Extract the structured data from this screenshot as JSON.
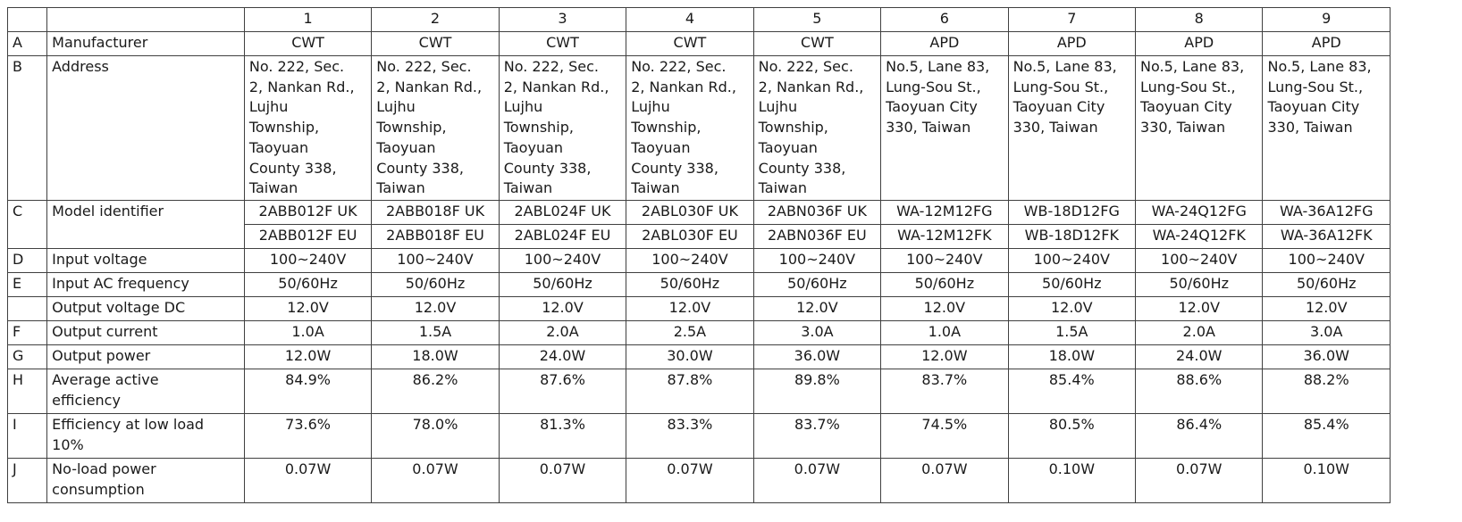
{
  "table": {
    "column_headers": [
      "1",
      "2",
      "3",
      "4",
      "5",
      "6",
      "7",
      "8",
      "9"
    ],
    "rows": [
      {
        "letter": "A",
        "label": "Manufacturer",
        "values": [
          "CWT",
          "CWT",
          "CWT",
          "CWT",
          "CWT",
          "APD",
          "APD",
          "APD",
          "APD"
        ]
      },
      {
        "letter": "B",
        "label": "Address",
        "values": [
          "No. 222, Sec.\n2, Nankan Rd.,\nLujhu\nTownship,\nTaoyuan\nCounty 338,\nTaiwan",
          "No. 222, Sec.\n2, Nankan Rd.,\nLujhu\nTownship,\nTaoyuan\nCounty 338,\nTaiwan",
          "No. 222, Sec.\n2, Nankan Rd.,\nLujhu\nTownship,\nTaoyuan\nCounty 338,\nTaiwan",
          "No. 222, Sec.\n2, Nankan Rd.,\nLujhu\nTownship,\nTaoyuan\nCounty 338,\nTaiwan",
          "No. 222, Sec.\n2, Nankan Rd.,\nLujhu\nTownship,\nTaoyuan\nCounty 338,\nTaiwan",
          "No.5, Lane 83,\nLung-Sou St.,\nTaoyuan City\n330, Taiwan",
          "No.5, Lane 83,\nLung-Sou St.,\nTaoyuan City\n330, Taiwan",
          "No.5, Lane 83,\nLung-Sou St.,\nTaoyuan City\n330, Taiwan",
          "No.5, Lane 83,\nLung-Sou St.,\nTaoyuan City\n330, Taiwan"
        ]
      },
      {
        "letter": "C",
        "label": "Model identifier",
        "values": [
          "2ABB012F UK",
          "2ABB018F UK",
          "2ABL024F UK",
          "2ABL030F UK",
          "2ABN036F UK",
          "WA-12M12FG",
          "WB-18D12FG",
          "WA-24Q12FG",
          "WA-36A12FG"
        ],
        "values2": [
          "2ABB012F EU",
          "2ABB018F EU",
          "2ABL024F EU",
          "2ABL030F EU",
          "2ABN036F EU",
          "WA-12M12FK",
          "WB-18D12FK",
          "WA-24Q12FK",
          "WA-36A12FK"
        ]
      },
      {
        "letter": "D",
        "label": "Input voltage",
        "values": [
          "100~240V",
          "100~240V",
          "100~240V",
          "100~240V",
          "100~240V",
          "100~240V",
          "100~240V",
          "100~240V",
          "100~240V"
        ]
      },
      {
        "letter": "E",
        "label": "Input AC frequency",
        "values": [
          "50/60Hz",
          "50/60Hz",
          "50/60Hz",
          "50/60Hz",
          "50/60Hz",
          "50/60Hz",
          "50/60Hz",
          "50/60Hz",
          "50/60Hz"
        ]
      },
      {
        "letter": "",
        "label": "Output voltage DC",
        "values": [
          "12.0V",
          "12.0V",
          "12.0V",
          "12.0V",
          "12.0V",
          "12.0V",
          "12.0V",
          "12.0V",
          "12.0V"
        ]
      },
      {
        "letter": "F",
        "label": "Output current",
        "values": [
          "1.0A",
          "1.5A",
          "2.0A",
          "2.5A",
          "3.0A",
          "1.0A",
          "1.5A",
          "2.0A",
          "3.0A"
        ]
      },
      {
        "letter": "G",
        "label": "Output power",
        "values": [
          "12.0W",
          "18.0W",
          "24.0W",
          "30.0W",
          "36.0W",
          "12.0W",
          "18.0W",
          "24.0W",
          "36.0W"
        ]
      },
      {
        "letter": "H",
        "label": "Average active\nefficiency",
        "values": [
          "84.9%",
          "86.2%",
          "87.6%",
          "87.8%",
          "89.8%",
          "83.7%",
          "85.4%",
          "88.6%",
          "88.2%"
        ]
      },
      {
        "letter": "I",
        "label": "Efficiency at low load\n10%",
        "values": [
          "73.6%",
          "78.0%",
          "81.3%",
          "83.3%",
          "83.7%",
          "74.5%",
          "80.5%",
          "86.4%",
          "85.4%"
        ]
      },
      {
        "letter": "J",
        "label": "No-load power\nconsumption",
        "values": [
          "0.07W",
          "0.07W",
          "0.07W",
          "0.07W",
          "0.07W",
          "0.07W",
          "0.10W",
          "0.07W",
          "0.10W"
        ]
      }
    ]
  }
}
